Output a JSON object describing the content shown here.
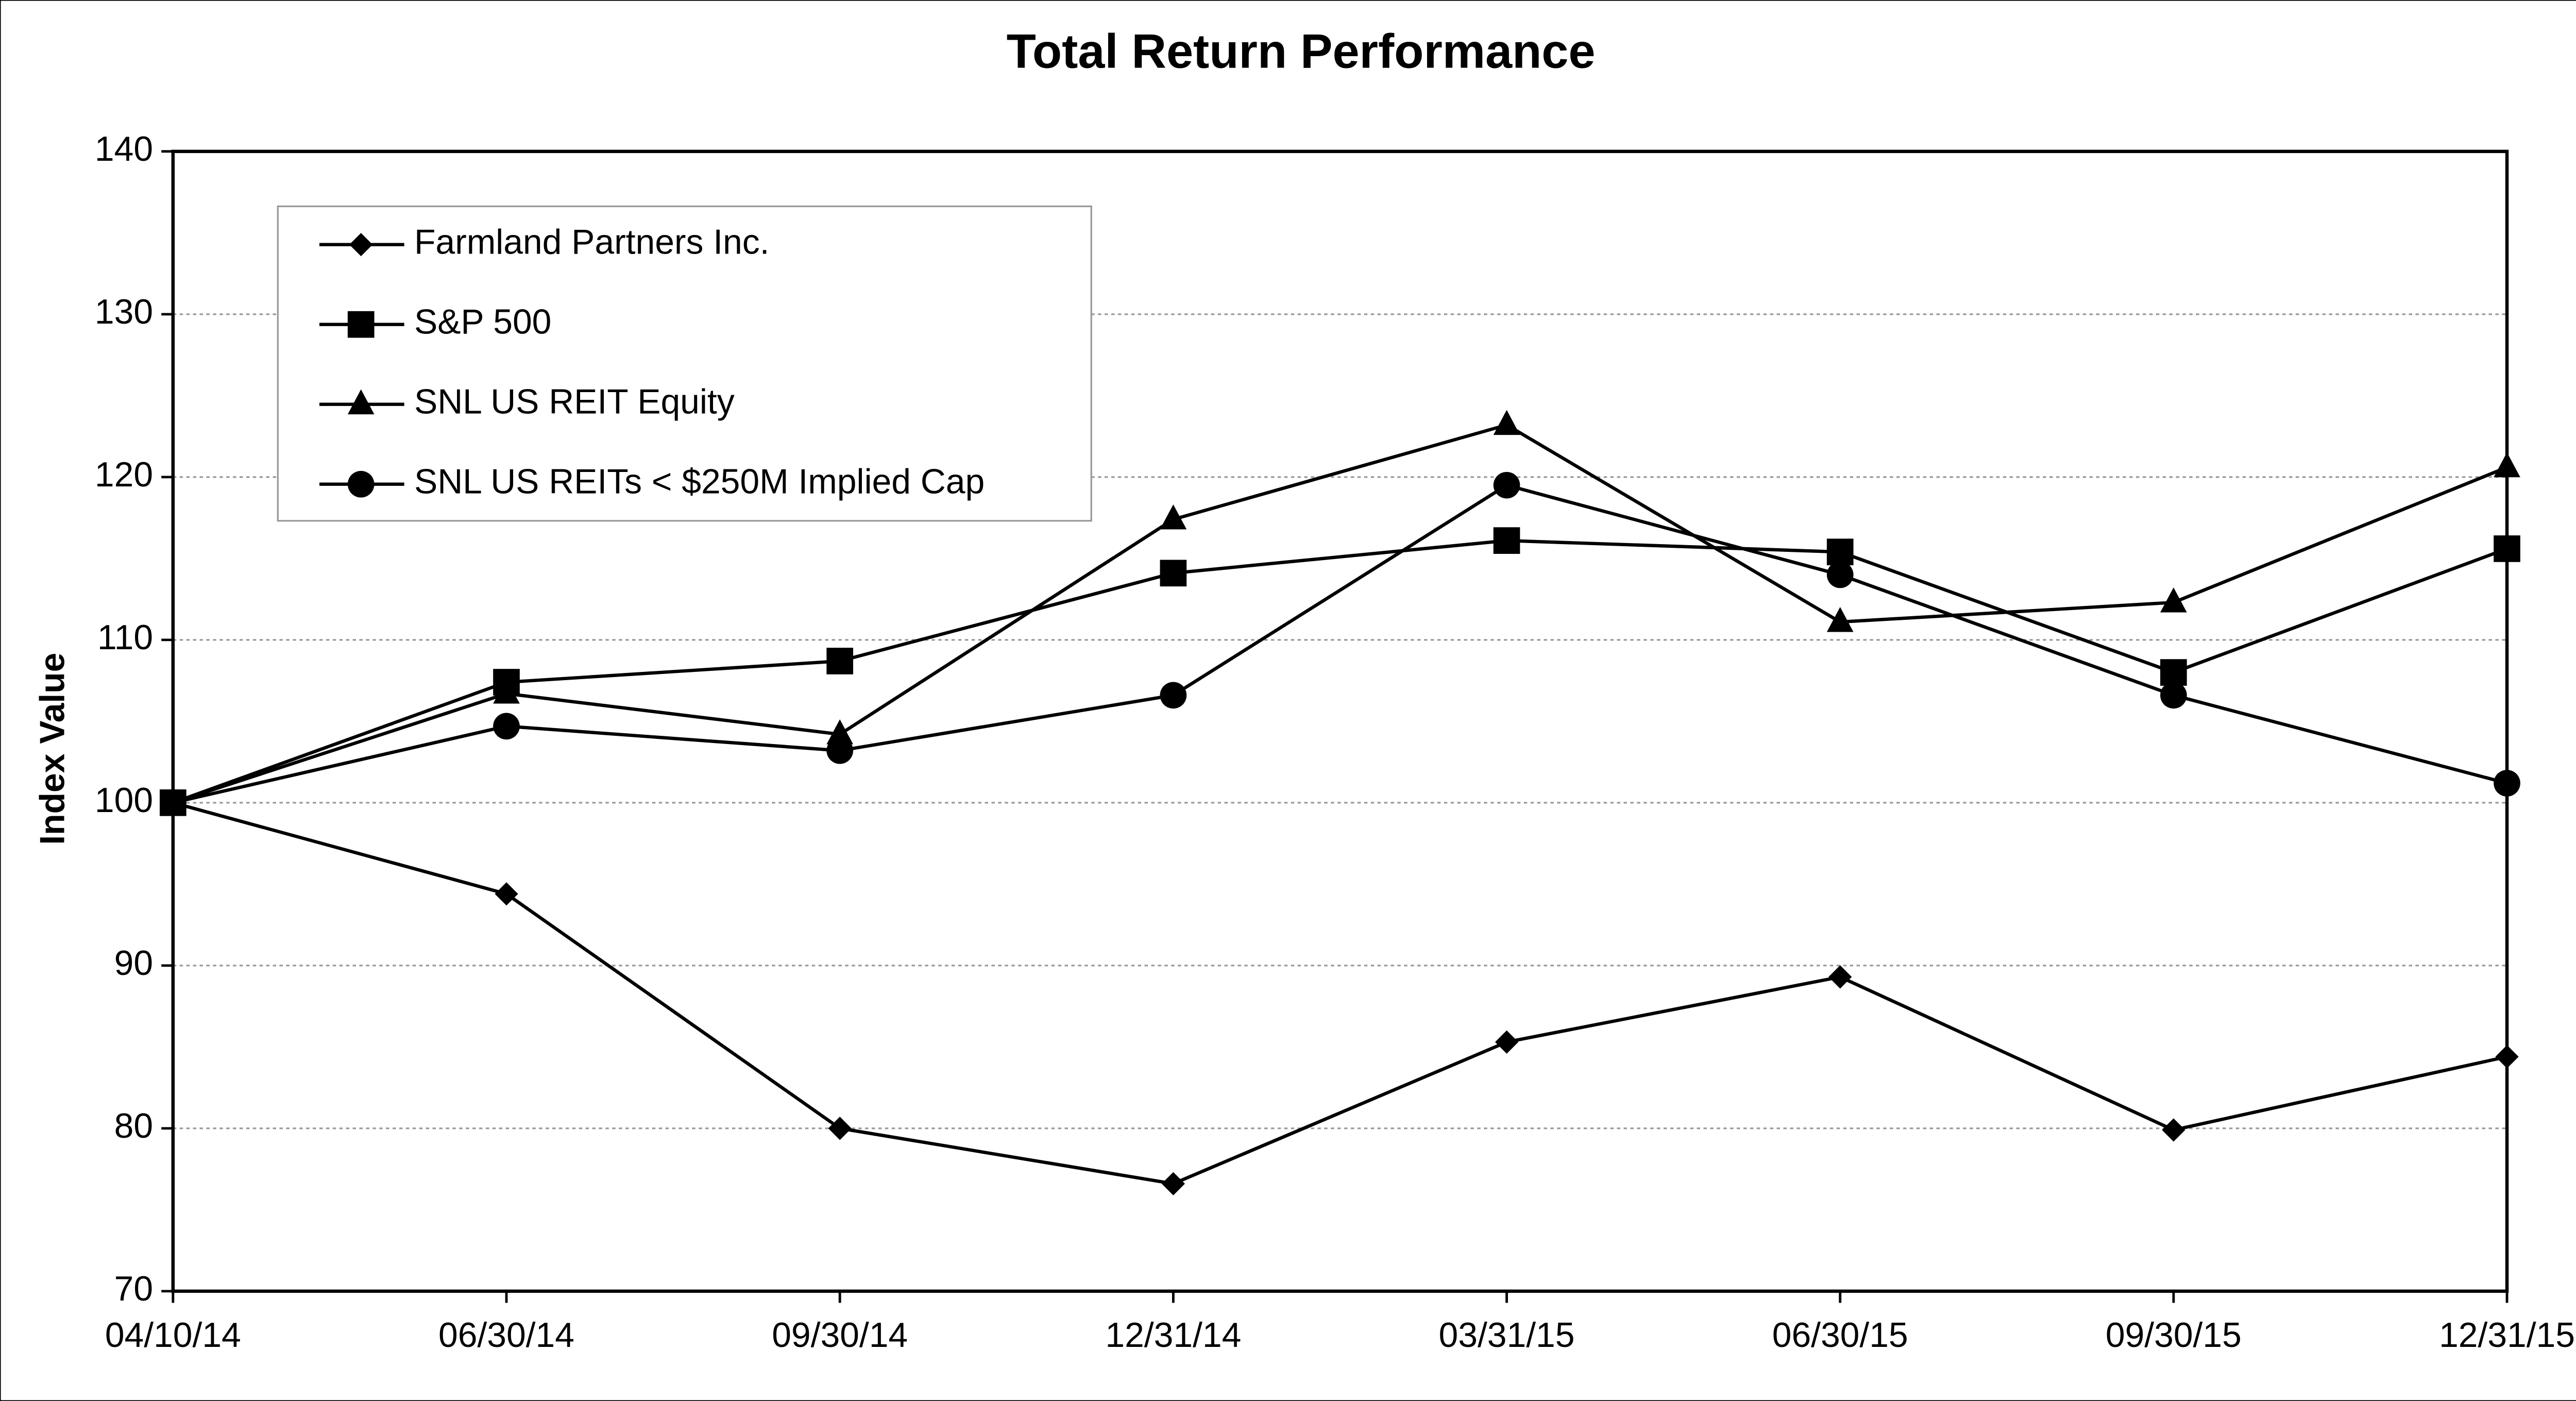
{
  "chart_data": {
    "type": "line",
    "title": "Total Return Performance",
    "y_label": "Index Value",
    "categories": [
      "04/10/14",
      "06/30/14",
      "09/30/14",
      "12/31/14",
      "03/31/15",
      "06/30/15",
      "09/30/15",
      "12/31/15"
    ],
    "series": [
      {
        "name": "Farmland Partners Inc.",
        "color": "#000000",
        "marker": "diamond",
        "values": [
          100,
          94.4,
          80.0,
          76.6,
          85.3,
          89.3,
          79.9,
          84.4
        ]
      },
      {
        "name": "S&P 500",
        "color": "#000000",
        "marker": "square",
        "values": [
          100,
          107.4,
          108.7,
          114.1,
          116.1,
          115.4,
          108.0,
          115.6
        ]
      },
      {
        "name": "SNL US REIT Equity",
        "color": "#000000",
        "marker": "triangle",
        "values": [
          100,
          106.7,
          104.2,
          117.4,
          123.2,
          111.1,
          112.3,
          120.6
        ]
      },
      {
        "name": "SNL US REITs < $250M Implied Cap",
        "color": "#000000",
        "marker": "circle",
        "values": [
          100,
          104.7,
          103.2,
          106.6,
          119.5,
          114.0,
          106.6,
          101.2
        ]
      }
    ],
    "ylim": [
      70,
      140
    ],
    "yticks": [
      70,
      80,
      90,
      100,
      110,
      120,
      130,
      140
    ],
    "grid": true,
    "legend": "upper left"
  }
}
